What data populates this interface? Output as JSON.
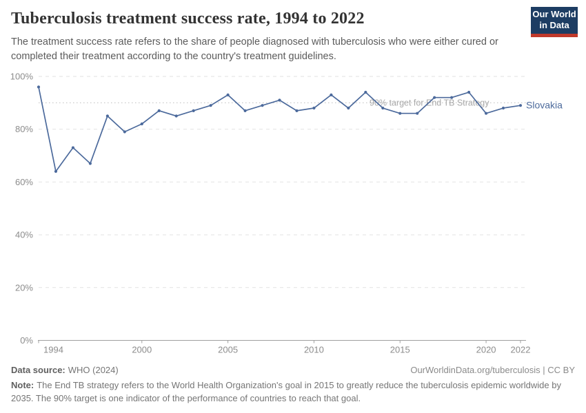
{
  "header": {
    "title": "Tuberculosis treatment success rate, 1994 to 2022",
    "subtitle": "The treatment success rate refers to the share of people diagnosed with tuberculosis who were either cured or completed their treatment according to the country's treatment guidelines.",
    "logo": {
      "line1": "Our World",
      "line2": "in Data"
    }
  },
  "chart_data": {
    "type": "line",
    "title": "Tuberculosis treatment success rate, 1994 to 2022",
    "x": [
      1994,
      1995,
      1996,
      1997,
      1998,
      1999,
      2000,
      2001,
      2002,
      2003,
      2004,
      2005,
      2006,
      2007,
      2008,
      2009,
      2010,
      2011,
      2012,
      2013,
      2014,
      2015,
      2016,
      2017,
      2018,
      2019,
      2020,
      2021,
      2022
    ],
    "series": [
      {
        "name": "Slovakia",
        "color": "#4c6a9c",
        "values": [
          96,
          64,
          73,
          67,
          85,
          79,
          82,
          87,
          85,
          87,
          89,
          93,
          87,
          89,
          91,
          87,
          88,
          93,
          88,
          94,
          88,
          86,
          86,
          92,
          92,
          94,
          86,
          88,
          89
        ]
      }
    ],
    "xlabel": "",
    "ylabel": "",
    "ylim": [
      0,
      100
    ],
    "yticks": [
      0,
      20,
      40,
      60,
      80,
      100
    ],
    "ytick_suffix": "%",
    "xticks": [
      1994,
      2000,
      2005,
      2010,
      2015,
      2020,
      2022
    ],
    "grid": true,
    "legend_position": "end-of-line",
    "annotations": [
      {
        "type": "hline",
        "value": 90,
        "label": "90% target for End TB Strategy",
        "style": "dotted"
      }
    ]
  },
  "footer": {
    "source_label": "Data source:",
    "source_value": "WHO (2024)",
    "credit": "OurWorldinData.org/tuberculosis | CC BY",
    "note_label": "Note:",
    "note_value": "The End TB strategy refers to the World Health Organization's goal in 2015 to greatly reduce the tuberculosis epidemic worldwide by 2035. The 90% target is one indicator of the performance of countries to reach that goal."
  },
  "colors": {
    "line": "#4c6a9c",
    "logo_bg": "#1d3d63",
    "logo_stripe": "#c0392b",
    "grid": "#e2e2e2",
    "axis": "#9e9e9e",
    "target": "#c9c9c9",
    "tick_text": "#8c8c8c",
    "target_text": "#a8a8a8"
  }
}
